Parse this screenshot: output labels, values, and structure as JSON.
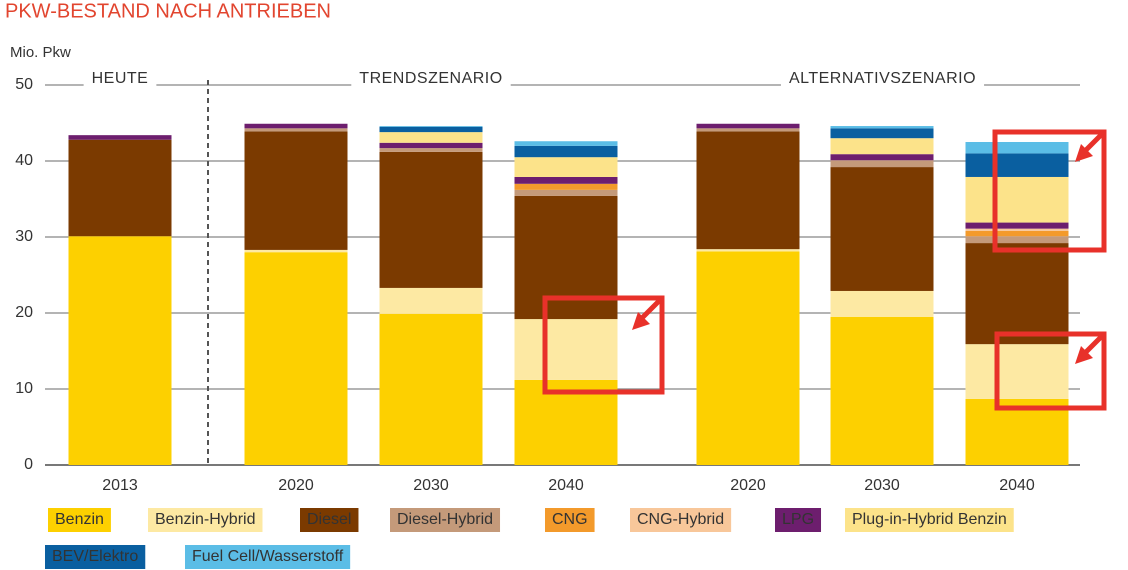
{
  "chart_data": {
    "type": "stacked-bar",
    "title": "PKW-BESTAND NACH ANTRIEBEN",
    "y_label": "Mio. Pkw",
    "groups": [
      {
        "label": "HEUTE",
        "categories": [
          "2013"
        ]
      },
      {
        "label": "TRENDSZENARIO",
        "categories": [
          "2020",
          "2030",
          "2040"
        ]
      },
      {
        "label": "ALTERNATIVSZENARIO",
        "categories": [
          "2020",
          "2030",
          "2040"
        ]
      }
    ],
    "categories": [
      "2013",
      "2020",
      "2030",
      "2040",
      "2020",
      "2030",
      "2040"
    ],
    "series": [
      {
        "name": "Benzin",
        "color": "#fdd000",
        "values": [
          30.1,
          28.0,
          19.9,
          11.2,
          28.1,
          19.5,
          8.7
        ]
      },
      {
        "name": "Benzin-Hybrid",
        "color": "#fde9a3",
        "values": [
          0,
          0.3,
          3.4,
          8.0,
          0.3,
          3.4,
          7.2
        ]
      },
      {
        "name": "Diesel",
        "color": "#7b3a00",
        "values": [
          12.7,
          15.6,
          17.9,
          16.2,
          15.5,
          16.3,
          13.3
        ]
      },
      {
        "name": "Diesel-Hybrid",
        "color": "#c49a7a",
        "values": [
          0,
          0.4,
          0.5,
          0.8,
          0.4,
          0.9,
          0.9
        ]
      },
      {
        "name": "CNG",
        "color": "#f39a2b",
        "values": [
          0,
          0,
          0,
          0.8,
          0,
          0,
          0.7
        ]
      },
      {
        "name": "CNG-Hybrid",
        "color": "#f8c79a",
        "values": [
          0,
          0,
          0,
          0,
          0,
          0,
          0.3
        ]
      },
      {
        "name": "LPG",
        "color": "#6d1e6e",
        "values": [
          0.6,
          0.6,
          0.7,
          0.9,
          0.6,
          0.8,
          0.8
        ]
      },
      {
        "name": "Plug-in-Hybrid Benzin",
        "color": "#fce38a",
        "values": [
          0,
          0,
          1.4,
          2.6,
          0,
          2.1,
          6.0
        ]
      },
      {
        "name": "BEV/Elektro",
        "color": "#0a5fa0",
        "values": [
          0,
          0,
          0.7,
          1.5,
          0,
          1.3,
          3.1
        ]
      },
      {
        "name": "Fuel Cell/Wasserstoff",
        "color": "#5bbde6",
        "values": [
          0,
          0,
          0.1,
          0.6,
          0,
          0.3,
          1.5
        ]
      }
    ],
    "ylim": [
      0,
      50
    ],
    "yticks": [
      0,
      10,
      20,
      30,
      40,
      50
    ],
    "grid": true
  }
}
